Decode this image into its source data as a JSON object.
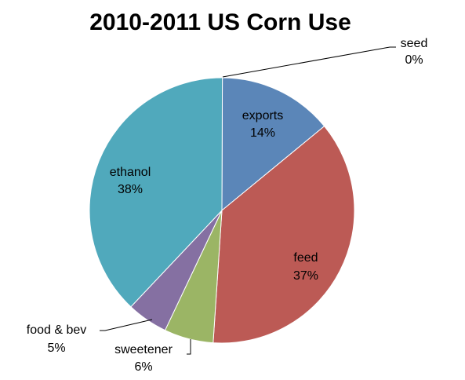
{
  "chart_data": {
    "type": "pie",
    "title": "2010-2011 US Corn Use",
    "slices": [
      {
        "label": "seed",
        "value": 0,
        "value_label": "0%",
        "color": "#F79646"
      },
      {
        "label": "exports",
        "value": 14,
        "value_label": "14%",
        "color": "#5B86B8"
      },
      {
        "label": "feed",
        "value": 37,
        "value_label": "37%",
        "color": "#BC5A55"
      },
      {
        "label": "sweetener",
        "value": 6,
        "value_label": "6%",
        "color": "#9BB565"
      },
      {
        "label": "food & bev",
        "value": 5,
        "value_label": "5%",
        "color": "#8570A2"
      },
      {
        "label": "ethanol",
        "value": 38,
        "value_label": "38%",
        "color": "#50A9BC"
      }
    ],
    "start_angle_deg": 0,
    "direction": "clockwise"
  }
}
